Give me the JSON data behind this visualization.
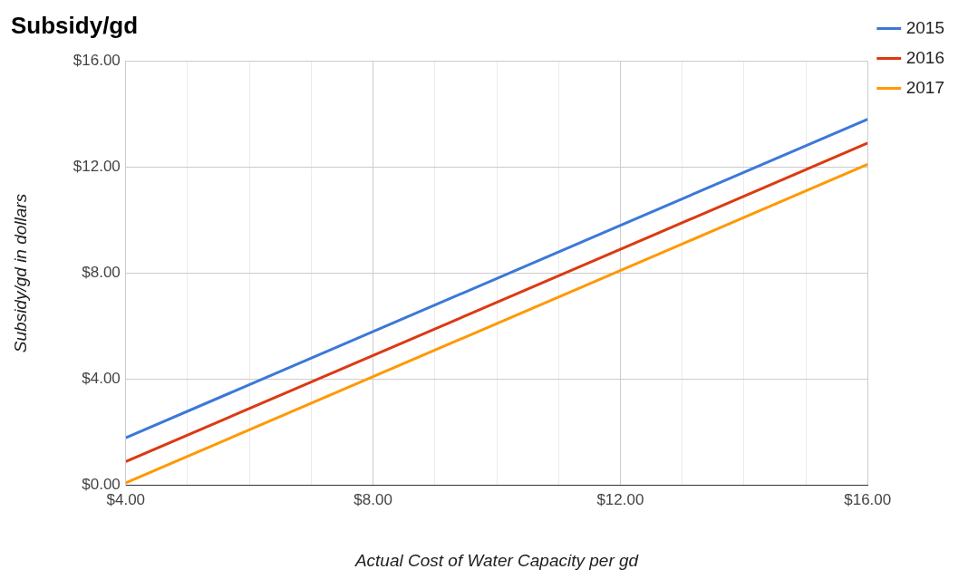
{
  "chart_data": {
    "type": "line",
    "title": "Subsidy/gd",
    "xlabel": "Actual Cost of Water Capacity per gd",
    "ylabel": "Subsidy/gd in dollars",
    "x": [
      4,
      16
    ],
    "series": [
      {
        "name": "2015",
        "color": "#3c78d8",
        "values": [
          1.8,
          13.8
        ]
      },
      {
        "name": "2016",
        "color": "#dc3912",
        "values": [
          0.9,
          12.9
        ]
      },
      {
        "name": "2017",
        "color": "#ff9900",
        "values": [
          0.1,
          12.1
        ]
      }
    ],
    "xlim": [
      4,
      16
    ],
    "xticks": [
      {
        "value": 4,
        "label": "$4.00"
      },
      {
        "value": 5,
        "label": null
      },
      {
        "value": 6,
        "label": null
      },
      {
        "value": 7,
        "label": null
      },
      {
        "value": 8,
        "label": "$8.00"
      },
      {
        "value": 9,
        "label": null
      },
      {
        "value": 10,
        "label": null
      },
      {
        "value": 11,
        "label": null
      },
      {
        "value": 12,
        "label": "$12.00"
      },
      {
        "value": 13,
        "label": null
      },
      {
        "value": 14,
        "label": null
      },
      {
        "value": 15,
        "label": null
      },
      {
        "value": 16,
        "label": "$16.00"
      }
    ],
    "ylim": [
      0,
      16
    ],
    "yticks": [
      {
        "value": 0,
        "label": "$0.00"
      },
      {
        "value": 4,
        "label": "$4.00"
      },
      {
        "value": 8,
        "label": "$8.00"
      },
      {
        "value": 12,
        "label": "$12.00"
      },
      {
        "value": 16,
        "label": "$16.00"
      }
    ],
    "grid": true,
    "legend": "top right",
    "marker": "none",
    "line_style": "solid"
  }
}
